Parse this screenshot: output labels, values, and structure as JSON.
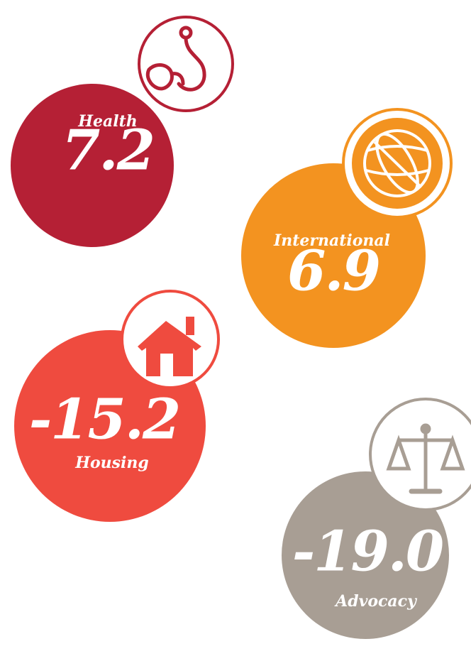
{
  "items": [
    {
      "label": "Health",
      "value": "7.2"
    },
    {
      "label": "International",
      "value": "6.9"
    },
    {
      "label": "Housing",
      "value": "-15.2"
    },
    {
      "label": "Advocacy",
      "value": "-19.0"
    }
  ]
}
